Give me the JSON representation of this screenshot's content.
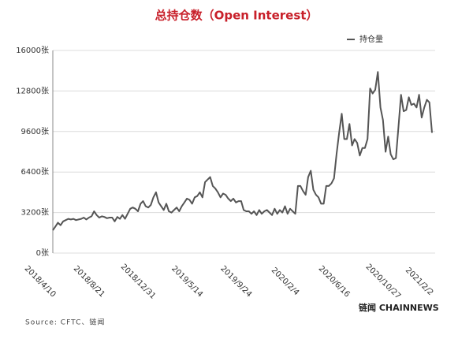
{
  "chart_data": {
    "type": "line",
    "title": "总持仓数（Open Interest）",
    "categories": [
      "2018/4/10",
      null,
      null,
      null,
      null,
      null,
      null,
      null,
      null,
      null,
      null,
      null,
      null,
      null,
      null,
      null,
      null,
      null,
      null,
      "2018/8/21",
      null,
      null,
      null,
      null,
      null,
      null,
      null,
      null,
      null,
      null,
      null,
      null,
      null,
      null,
      null,
      null,
      null,
      null,
      "2018/12/31",
      null,
      null,
      null,
      null,
      null,
      null,
      null,
      null,
      null,
      null,
      null,
      null,
      null,
      null,
      null,
      null,
      null,
      null,
      "2019/5/14",
      null,
      null,
      null,
      null,
      null,
      null,
      null,
      null,
      null,
      null,
      null,
      null,
      null,
      null,
      null,
      null,
      null,
      null,
      "2019/9/24",
      null,
      null,
      null,
      null,
      null,
      null,
      null,
      null,
      null,
      null,
      null,
      null,
      null,
      null,
      null,
      null,
      null,
      null,
      "2020/2/4",
      null,
      null,
      null,
      null,
      null,
      null,
      null,
      null,
      null,
      null,
      null,
      null,
      null,
      null,
      null,
      null,
      null,
      null,
      "2020/6/16",
      null,
      null,
      null,
      null,
      null,
      null,
      null,
      null,
      null,
      null,
      null,
      null,
      null,
      null,
      null,
      null,
      null,
      null,
      "2020/10/27",
      null,
      null,
      null,
      null,
      null,
      null,
      null,
      null,
      null,
      null,
      null,
      null,
      null,
      "2021/2/2"
    ],
    "series": [
      {
        "name": "持仓量",
        "color": "#555555",
        "values": [
          1800,
          2100,
          2400,
          2200,
          2500,
          2600,
          2700,
          2650,
          2700,
          2600,
          2650,
          2700,
          2800,
          2650,
          2800,
          2900,
          3300,
          3000,
          2800,
          2900,
          2850,
          2750,
          2800,
          2800,
          2500,
          2850,
          2700,
          3000,
          2700,
          3100,
          3500,
          3600,
          3500,
          3300,
          3900,
          4100,
          3700,
          3600,
          3800,
          4400,
          4800,
          4000,
          3700,
          3400,
          3900,
          3300,
          3200,
          3400,
          3600,
          3300,
          3700,
          4000,
          4300,
          4200,
          3900,
          4400,
          4500,
          4800,
          4400,
          5600,
          5800,
          6000,
          5300,
          5100,
          4800,
          4400,
          4700,
          4600,
          4300,
          4100,
          4300,
          4000,
          4100,
          4100,
          3400,
          3300,
          3300,
          3100,
          3300,
          3000,
          3400,
          3100,
          3300,
          3400,
          3200,
          3000,
          3500,
          3100,
          3400,
          3200,
          3700,
          3100,
          3500,
          3300,
          3100,
          5300,
          5300,
          4900,
          4600,
          6000,
          6500,
          5000,
          4600,
          4400,
          3900,
          3900,
          5300,
          5300,
          5500,
          5900,
          7800,
          9500,
          11000,
          9000,
          9000,
          10200,
          8500,
          9000,
          8700,
          7700,
          8300,
          8300,
          9000,
          13000,
          12600,
          12900,
          14300,
          11500,
          10500,
          8000,
          9200,
          7800,
          7400,
          7500,
          10000,
          12500,
          11200,
          11300,
          12300,
          11700,
          11800,
          11500,
          12500,
          10700,
          11500,
          12100,
          11900,
          9500
        ]
      }
    ],
    "ylim": [
      0,
      16000
    ],
    "yticks": [
      {
        "value": 0,
        "label": "0张"
      },
      {
        "value": 3200,
        "label": "3200张"
      },
      {
        "value": 6400,
        "label": "6400张"
      },
      {
        "value": 9600,
        "label": "9600张"
      },
      {
        "value": 12800,
        "label": "12800张"
      },
      {
        "value": 16000,
        "label": "16000张"
      }
    ],
    "grid": true,
    "legend": "top-right",
    "source": "Source: CFTC、链闻",
    "brand": "链闻 CHAINNEWS"
  }
}
